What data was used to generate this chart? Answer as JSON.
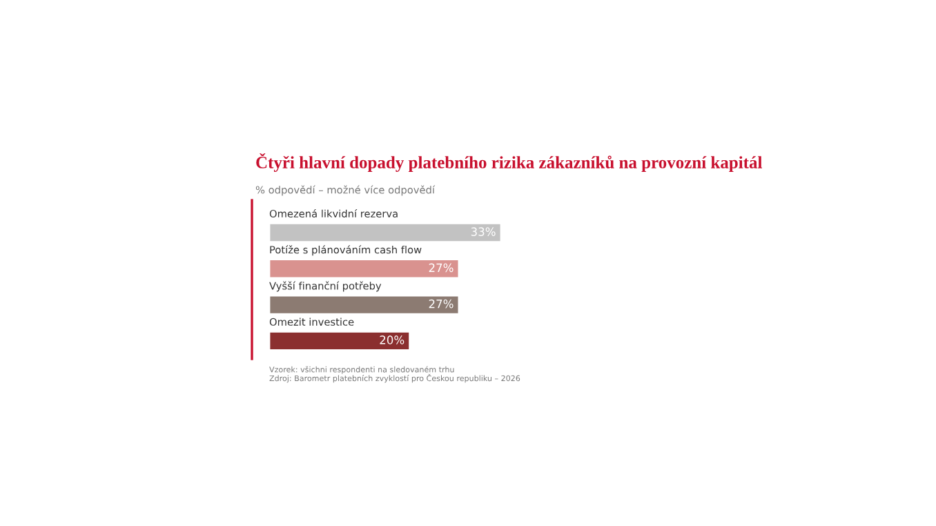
{
  "chart_data": {
    "type": "bar",
    "orientation": "horizontal",
    "title": "Čtyři hlavní dopady platebního rizika zákazníků na provozní kapitál",
    "subtitle": "% odpovědí – možné více odpovědí",
    "categories": [
      "Omezená likvidní rezerva",
      "Potíže s plánováním cash flow",
      "Vyšší finanční potřeby",
      "Omezit investice"
    ],
    "values": [
      33,
      27,
      27,
      20
    ],
    "colors": [
      "#c2c2c2",
      "#d9928f",
      "#8c7b72",
      "#8b2f2f"
    ],
    "value_labels": [
      "33%",
      "27%",
      "27%",
      "20%"
    ],
    "annotations": [
      "Vzorek: všichni respondenti na sledovaném trhu",
      "Zdroj: Barometr platebních zvyklostí pro Českou republiku – 2026"
    ]
  }
}
